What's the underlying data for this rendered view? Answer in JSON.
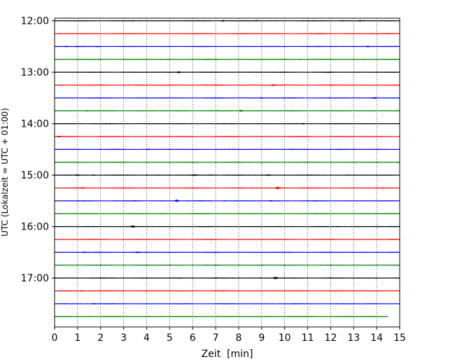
{
  "chart_data": {
    "type": "line",
    "title": "",
    "xlabel": "Zeit  [min]",
    "ylabel": "UTC (Lokalzeit = UTC + 01:00)",
    "xlim": [
      0,
      15
    ],
    "ylim": [
      "17:57",
      "11:57"
    ],
    "x_ticks": [
      "0",
      "1",
      "2",
      "3",
      "4",
      "5",
      "6",
      "7",
      "8",
      "9",
      "10",
      "11",
      "12",
      "13",
      "14",
      "15"
    ],
    "y_ticks": [
      "12:00",
      "13:00",
      "14:00",
      "15:00",
      "16:00",
      "17:00"
    ],
    "grid": "vertical dotted lines at each minute",
    "legend": "none",
    "trace_interval_minutes": 15,
    "colors": [
      "#000000",
      "#ff0000",
      "#0000ff",
      "#008000"
    ],
    "series": [
      {
        "start": "12:00",
        "color": "#000000",
        "bursts": [
          [
            3.4,
            2
          ],
          [
            7.3,
            6
          ],
          [
            8.8,
            3
          ],
          [
            12.5,
            3
          ],
          [
            13.3,
            3
          ]
        ]
      },
      {
        "start": "12:15",
        "color": "#ff0000",
        "bursts": [
          [
            11.5,
            2
          ],
          [
            13.8,
            2
          ]
        ]
      },
      {
        "start": "12:30",
        "color": "#0000ff",
        "bursts": [
          [
            0.5,
            3
          ],
          [
            1.0,
            2.5
          ],
          [
            1.9,
            3
          ],
          [
            13.6,
            4
          ]
        ]
      },
      {
        "start": "12:45",
        "color": "#008000",
        "bursts": [
          [
            10.7,
            2.5
          ]
        ]
      },
      {
        "start": "13:00",
        "color": "#000000",
        "bursts": [
          [
            5.4,
            5
          ],
          [
            11.9,
            2
          ]
        ]
      },
      {
        "start": "13:15",
        "color": "#ff0000",
        "bursts": [
          [
            3.6,
            2
          ],
          [
            9.5,
            5
          ]
        ]
      },
      {
        "start": "13:30",
        "color": "#0000ff",
        "bursts": [
          [
            9.0,
            3
          ],
          [
            13.9,
            4
          ]
        ]
      },
      {
        "start": "13:45",
        "color": "#008000",
        "bursts": [
          [
            1.4,
            2
          ],
          [
            8.1,
            5
          ]
        ]
      },
      {
        "start": "14:00",
        "color": "#000000",
        "bursts": [
          [
            10.8,
            3
          ]
        ]
      },
      {
        "start": "14:15",
        "color": "#ff0000",
        "bursts": [
          [
            0.2,
            4
          ]
        ]
      },
      {
        "start": "14:30",
        "color": "#0000ff",
        "bursts": [
          [
            4.1,
            3
          ],
          [
            10.3,
            2
          ],
          [
            12.4,
            2
          ]
        ]
      },
      {
        "start": "14:45",
        "color": "#008000",
        "bursts": [
          [
            14.9,
            2
          ]
        ]
      },
      {
        "start": "15:00",
        "color": "#000000",
        "bursts": [
          [
            1.0,
            4
          ],
          [
            1.7,
            3
          ],
          [
            6.1,
            4
          ],
          [
            6.8,
            3
          ],
          [
            9.3,
            4
          ]
        ]
      },
      {
        "start": "15:15",
        "color": "#ff0000",
        "bursts": [
          [
            1.2,
            3
          ],
          [
            9.7,
            9
          ],
          [
            14.3,
            2
          ]
        ]
      },
      {
        "start": "15:30",
        "color": "#0000ff",
        "bursts": [
          [
            3.5,
            2
          ],
          [
            5.3,
            8
          ],
          [
            7.4,
            2.5
          ],
          [
            9.4,
            2.5
          ]
        ]
      },
      {
        "start": "15:45",
        "color": "#008000",
        "bursts": [
          [
            13.6,
            2
          ]
        ]
      },
      {
        "start": "16:00",
        "color": "#000000",
        "bursts": [
          [
            3.4,
            7
          ],
          [
            12.3,
            2
          ],
          [
            14.0,
            2
          ]
        ]
      },
      {
        "start": "16:15",
        "color": "#ff0000",
        "bursts": []
      },
      {
        "start": "16:30",
        "color": "#0000ff",
        "bursts": [
          [
            1.3,
            3
          ],
          [
            3.6,
            3.5
          ]
        ]
      },
      {
        "start": "16:45",
        "color": "#008000",
        "bursts": []
      },
      {
        "start": "17:00",
        "color": "#000000",
        "bursts": [
          [
            9.6,
            8
          ]
        ]
      },
      {
        "start": "17:15",
        "color": "#ff0000",
        "bursts": [
          [
            1.2,
            2.5
          ]
        ]
      },
      {
        "start": "17:30",
        "color": "#0000ff",
        "bursts": [
          [
            1.7,
            2.5
          ]
        ]
      },
      {
        "start": "17:45",
        "color": "#008000",
        "bursts": [
          [
            1.5,
            2
          ]
        ],
        "end_minute": 14.5
      }
    ]
  }
}
